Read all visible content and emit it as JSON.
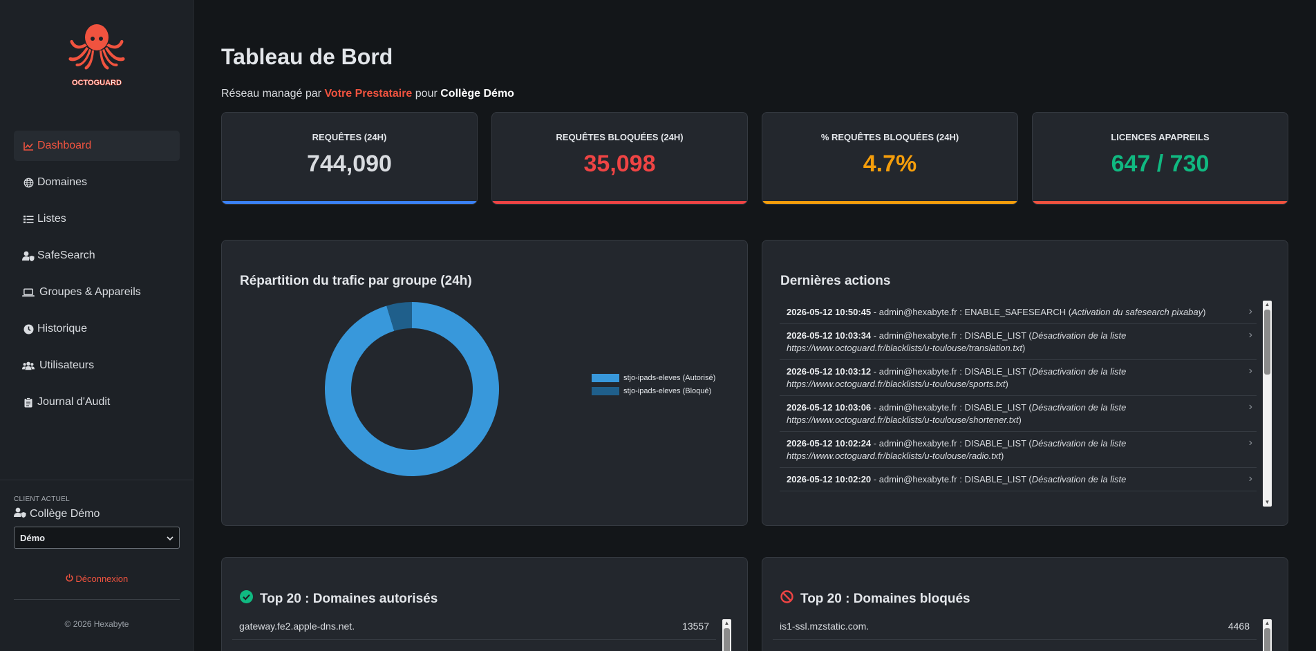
{
  "sidebar": {
    "logo_text": "OCTOGUARD",
    "nav": [
      {
        "label": "Dashboard",
        "icon": "chart-line-icon"
      },
      {
        "label": "Domaines",
        "icon": "globe-icon"
      },
      {
        "label": "Listes",
        "icon": "list-icon"
      },
      {
        "label": "SafeSearch",
        "icon": "user-shield-icon"
      },
      {
        "label": "Groupes & Appareils",
        "icon": "laptop-icon"
      },
      {
        "label": "Historique",
        "icon": "clock-icon"
      },
      {
        "label": "Utilisateurs",
        "icon": "users-icon"
      },
      {
        "label": "Journal d'Audit",
        "icon": "clipboard-icon"
      }
    ],
    "client_label": "CLIENT ACTUEL",
    "client_name": "Collège Démo",
    "client_select_value": "Démo",
    "logout_label": "Déconnexion",
    "copyright": "© 2026 Hexabyte"
  },
  "header": {
    "title": "Tableau de Bord",
    "subtitle_prefix": "Réseau managé par",
    "provider": "Votre Prestataire",
    "subtitle_mid": "pour",
    "client": "Collège Démo"
  },
  "stats": [
    {
      "label": "REQUÊTES (24H)",
      "value": "744,090",
      "color": "#d9dce0",
      "bar_color": "#3b82f6"
    },
    {
      "label": "REQUÊTES BLOQUÉES (24H)",
      "value": "35,098",
      "color": "#ef4444",
      "bar_color": "#ef4444"
    },
    {
      "label": "% REQUÊTES BLOQUÉES (24H)",
      "value": "4.7%",
      "color": "#f59e0b",
      "bar_color": "#f59e0b"
    },
    {
      "label": "LICENCES APAPREILS",
      "value": "647 / 730",
      "color": "#10b981",
      "bar_color": "#f0533f"
    }
  ],
  "chart_panel": {
    "title": "Répartition du trafic par groupe (24h)"
  },
  "chart_data": {
    "type": "pie",
    "categories": [
      "stjo-ipads-eleves (Autorisé)",
      "stjo-ipads-eleves (Bloqué)"
    ],
    "values": [
      708992,
      35098
    ],
    "colors": [
      "#3898db",
      "#1f5f8b"
    ],
    "donut": true,
    "legend": "right"
  },
  "actions_panel": {
    "title": "Dernières actions",
    "items": [
      {
        "ts": "2026-05-12 10:50:45",
        "text": " - admin@hexabyte.fr : ENABLE_SAFESEARCH (",
        "detail": "Activation du safesearch pixabay",
        "end": ")"
      },
      {
        "ts": "2026-05-12 10:03:34",
        "text": " - admin@hexabyte.fr : DISABLE_LIST (",
        "detail": "Désactivation de la liste https://www.octoguard.fr/blacklists/u-toulouse/translation.txt",
        "end": ")"
      },
      {
        "ts": "2026-05-12 10:03:12",
        "text": " - admin@hexabyte.fr : DISABLE_LIST (",
        "detail": "Désactivation de la liste https://www.octoguard.fr/blacklists/u-toulouse/sports.txt",
        "end": ")"
      },
      {
        "ts": "2026-05-12 10:03:06",
        "text": " - admin@hexabyte.fr : DISABLE_LIST (",
        "detail": "Désactivation de la liste https://www.octoguard.fr/blacklists/u-toulouse/shortener.txt",
        "end": ")"
      },
      {
        "ts": "2026-05-12 10:02:24",
        "text": " - admin@hexabyte.fr : DISABLE_LIST (",
        "detail": "Désactivation de la liste https://www.octoguard.fr/blacklists/u-toulouse/radio.txt",
        "end": ")"
      },
      {
        "ts": "2026-05-12 10:02:20",
        "text": " - admin@hexabyte.fr : DISABLE_LIST (",
        "detail": "Désactivation de la liste",
        "end": ""
      }
    ]
  },
  "top_allowed": {
    "title": "Top 20 : Domaines autorisés",
    "rows": [
      {
        "domain": "gateway.fe2.apple-dns.net.",
        "count": "13557"
      }
    ]
  },
  "top_blocked": {
    "title": "Top 20 : Domaines bloqués",
    "rows": [
      {
        "domain": "is1-ssl.mzstatic.com.",
        "count": "4468"
      }
    ]
  }
}
